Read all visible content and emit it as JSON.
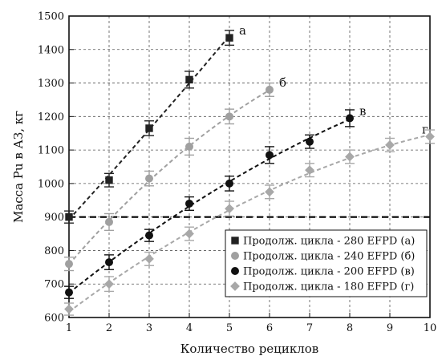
{
  "chart_data": {
    "type": "scatter",
    "title": "",
    "xlabel": "Количество рециклов",
    "ylabel": "Масса Pu в АЗ, кг",
    "xlim": [
      1,
      10
    ],
    "ylim": [
      600,
      1500
    ],
    "x_ticks": [
      "1",
      "2",
      "3",
      "4",
      "5",
      "6",
      "7",
      "8",
      "9",
      "10"
    ],
    "y_ticks": [
      "600",
      "700",
      "800",
      "900",
      "1000",
      "1100",
      "1200",
      "1300",
      "1400",
      "1500"
    ],
    "grid": true,
    "reference_line": {
      "y": 900,
      "style": "dashed"
    },
    "legend_position": "bottom-right",
    "series": [
      {
        "name": "Продолж. цикла - 280 EFPD (а)",
        "curve_label": "а",
        "color": "#222222",
        "marker": "square",
        "x": [
          1,
          2,
          3,
          4,
          5
        ],
        "y": [
          900,
          1010,
          1165,
          1310,
          1435
        ],
        "err": [
          18,
          20,
          22,
          25,
          22
        ]
      },
      {
        "name": "Продолж. цикла - 240 EFPD (б)",
        "curve_label": "б",
        "color": "#a0a0a0",
        "marker": "circle",
        "x": [
          1,
          2,
          3,
          4,
          5,
          6
        ],
        "y": [
          760,
          885,
          1015,
          1110,
          1200,
          1280
        ],
        "err": [
          20,
          25,
          22,
          25,
          22,
          20
        ]
      },
      {
        "name": "Продолж. цикла - 200 EFPD (в)",
        "curve_label": "в",
        "color": "#111111",
        "marker": "circle",
        "x": [
          1,
          2,
          3,
          4,
          5,
          6,
          7,
          8
        ],
        "y": [
          675,
          765,
          845,
          940,
          1000,
          1085,
          1125,
          1195
        ],
        "err": [
          18,
          22,
          18,
          20,
          22,
          25,
          20,
          25
        ]
      },
      {
        "name": "Продолж. цикла - 180 EFPD (г)",
        "curve_label": "г",
        "color": "#a8a8a8",
        "marker": "diamond",
        "x": [
          1,
          2,
          3,
          4,
          5,
          6,
          7,
          8,
          9,
          10
        ],
        "y": [
          625,
          700,
          775,
          850,
          925,
          975,
          1040,
          1080,
          1115,
          1140
        ],
        "err": [
          18,
          22,
          20,
          20,
          22,
          20,
          20,
          20,
          20,
          20
        ]
      }
    ]
  }
}
